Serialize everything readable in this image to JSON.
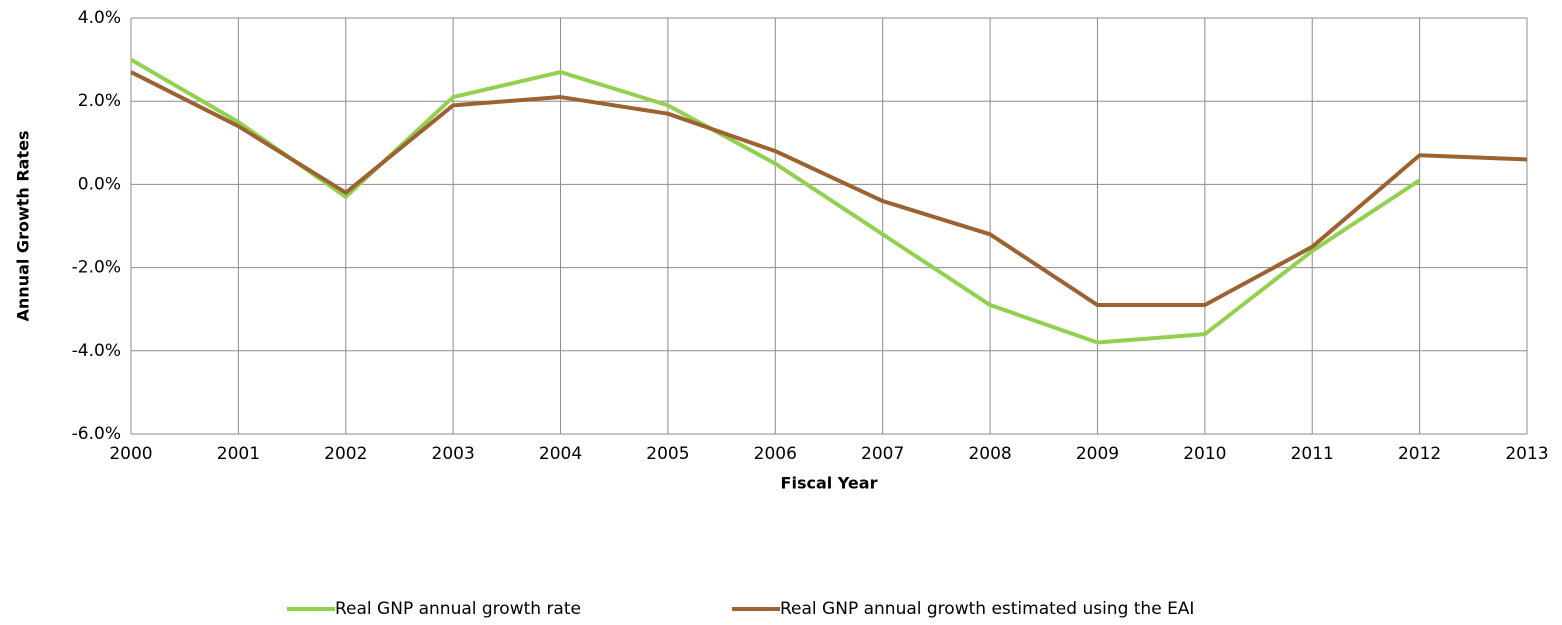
{
  "chart_data": {
    "type": "line",
    "x_label": "Fiscal Year",
    "y_label": "Annual Growth Rates",
    "x": [
      2000,
      2001,
      2002,
      2003,
      2004,
      2005,
      2006,
      2007,
      2008,
      2009,
      2010,
      2011,
      2012,
      2013
    ],
    "series": [
      {
        "name": "Real GNP annual growth rate",
        "color": "#92d050",
        "values": [
          3.0,
          1.5,
          -0.3,
          2.1,
          2.7,
          1.9,
          0.5,
          -1.2,
          -2.9,
          -3.8,
          -3.6,
          -1.6,
          0.1,
          null
        ]
      },
      {
        "name": "Real GNP annual growth estimated using the EAI",
        "color": "#9c6232",
        "values": [
          2.7,
          1.4,
          -0.2,
          1.9,
          2.1,
          1.7,
          0.8,
          -0.4,
          -1.2,
          -2.9,
          -2.9,
          -1.5,
          0.7,
          0.6
        ]
      }
    ],
    "xlim": [
      2000,
      2013
    ],
    "xticks": [
      2000,
      2001,
      2002,
      2003,
      2004,
      2005,
      2006,
      2007,
      2008,
      2009,
      2010,
      2011,
      2012,
      2013
    ],
    "ylim": [
      -6,
      4
    ],
    "yticks": [
      {
        "value": -6,
        "label": "-6.0%"
      },
      {
        "value": -4,
        "label": "-4.0%"
      },
      {
        "value": -2,
        "label": "-2.0%"
      },
      {
        "value": 0,
        "label": "0.0%"
      },
      {
        "value": 2,
        "label": "2.0%"
      },
      {
        "value": 4,
        "label": "4.0%"
      }
    ],
    "grid": true,
    "legend": "bottom"
  }
}
